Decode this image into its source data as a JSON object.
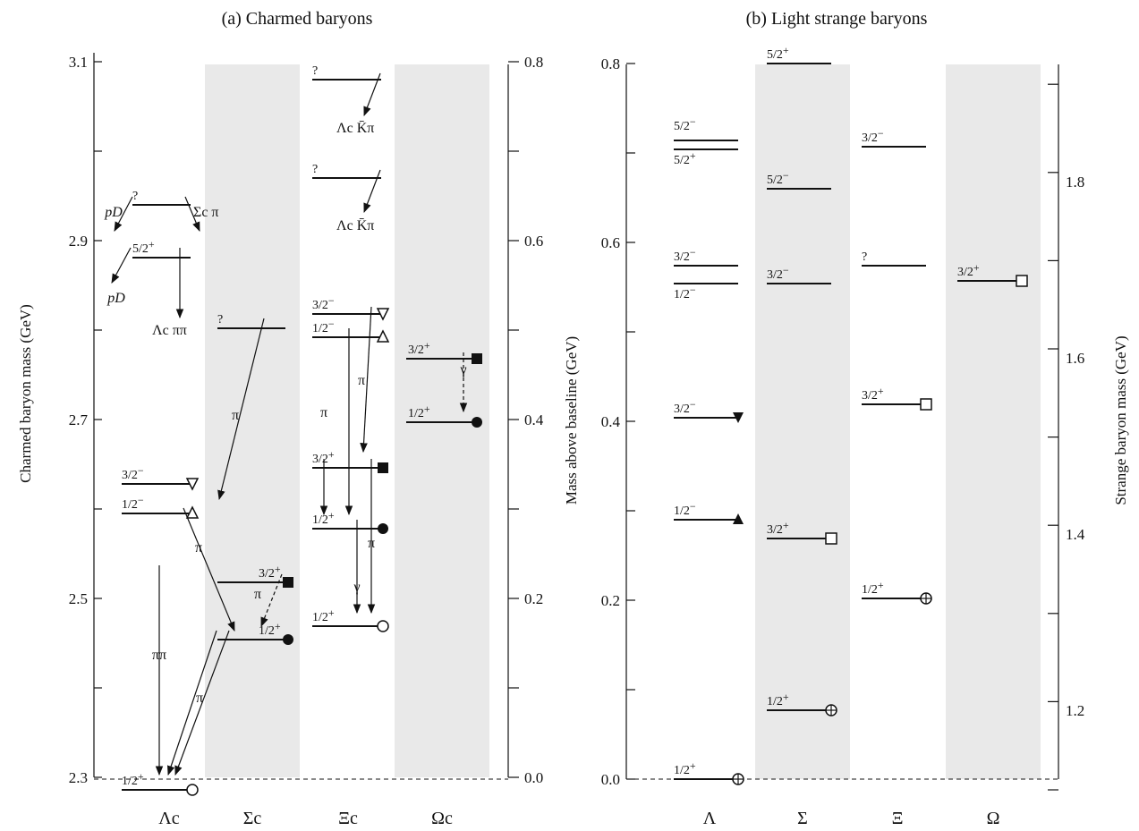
{
  "colors": {
    "shade": "#e9e9e9",
    "ink": "#111111"
  },
  "panel_a": {
    "title": "(a) Charmed baryons",
    "left_axis": {
      "label": "Charmed baryon mass  (GeV)",
      "ticks": [
        "2.3",
        "2.5",
        "2.7",
        "2.9",
        "3.1"
      ]
    },
    "right_axis": {
      "ticks": [
        "0.0",
        "0.2",
        "0.4",
        "0.6",
        "0.8"
      ]
    },
    "columns": [
      "Λc",
      "Σc",
      "Ξc",
      "Ωc"
    ],
    "levels": [
      {
        "col": 0,
        "mass": 2.286,
        "jp": "1/2+",
        "marker": "open-circle"
      },
      {
        "col": 0,
        "mass": 2.595,
        "jp": "1/2−",
        "marker": "open-triangle-up"
      },
      {
        "col": 0,
        "mass": 2.628,
        "jp": "3/2−",
        "marker": "open-triangle-down"
      },
      {
        "col": 0,
        "mass": 2.881,
        "jp": "5/2+",
        "marker": ""
      },
      {
        "col": 0,
        "mass": 2.94,
        "jp": "?",
        "marker": ""
      },
      {
        "col": 1,
        "mass": 2.454,
        "jp": "1/2+",
        "marker": "filled-circle"
      },
      {
        "col": 1,
        "mass": 2.518,
        "jp": "3/2+",
        "marker": "filled-square"
      },
      {
        "col": 1,
        "mass": 2.802,
        "jp": "?",
        "marker": ""
      },
      {
        "col": 2,
        "mass": 2.469,
        "jp": "1/2+",
        "marker": "open-circle"
      },
      {
        "col": 2,
        "mass": 2.578,
        "jp": "1/2+",
        "marker": "filled-circle"
      },
      {
        "col": 2,
        "mass": 2.646,
        "jp": "3/2+",
        "marker": "filled-square"
      },
      {
        "col": 2,
        "mass": 2.792,
        "jp": "1/2−",
        "marker": "open-triangle-up"
      },
      {
        "col": 2,
        "mass": 2.818,
        "jp": "3/2−",
        "marker": "open-triangle-down"
      },
      {
        "col": 2,
        "mass": 2.97,
        "jp": "?",
        "marker": ""
      },
      {
        "col": 2,
        "mass": 3.08,
        "jp": "?",
        "marker": ""
      },
      {
        "col": 3,
        "mass": 2.697,
        "jp": "1/2+",
        "marker": "filled-circle"
      },
      {
        "col": 3,
        "mass": 2.768,
        "jp": "3/2+",
        "marker": "filled-square"
      }
    ],
    "decay_labels": {
      "pD_upper": "pD",
      "sigma_c_pi": "Σc π",
      "pD_lower": "pD",
      "lambda_c_pipi": "Λc ππ",
      "pipi": "ππ",
      "pi": "π",
      "gamma": "γ",
      "lambda_c_kbar_pi": "Λc K̄π"
    }
  },
  "panel_b": {
    "title": "(b) Light strange baryons",
    "left_axis": {
      "label": "Mass above baseline  (GeV)",
      "ticks": [
        "0.0",
        "0.2",
        "0.4",
        "0.6",
        "0.8"
      ]
    },
    "right_axis": {
      "label": "Strange baryon mass  (GeV)",
      "ticks": [
        "1.2",
        "1.4",
        "1.6",
        "1.8"
      ]
    },
    "columns": [
      "Λ",
      "Σ",
      "Ξ",
      "Ω"
    ],
    "levels": [
      {
        "col": 0,
        "mass": 0.0,
        "jp": "1/2+",
        "marker": "open-circle-plus"
      },
      {
        "col": 0,
        "mass": 0.29,
        "jp": "1/2−",
        "marker": "filled-triangle-up"
      },
      {
        "col": 0,
        "mass": 0.404,
        "jp": "3/2−",
        "marker": "filled-triangle-down"
      },
      {
        "col": 0,
        "mass": 0.554,
        "jp": "1/2−",
        "marker": ""
      },
      {
        "col": 0,
        "mass": 0.574,
        "jp": "3/2−",
        "marker": ""
      },
      {
        "col": 0,
        "mass": 0.704,
        "jp": "5/2+",
        "marker": ""
      },
      {
        "col": 0,
        "mass": 0.714,
        "jp": "5/2−",
        "marker": ""
      },
      {
        "col": 1,
        "mass": 0.077,
        "jp": "1/2+",
        "marker": "open-circle-plus"
      },
      {
        "col": 1,
        "mass": 0.269,
        "jp": "3/2+",
        "marker": "open-square"
      },
      {
        "col": 1,
        "mass": 0.554,
        "jp": "3/2−",
        "marker": ""
      },
      {
        "col": 1,
        "mass": 0.66,
        "jp": "5/2−",
        "marker": ""
      },
      {
        "col": 1,
        "mass": 0.8,
        "jp": "5/2+",
        "marker": ""
      },
      {
        "col": 2,
        "mass": 0.202,
        "jp": "1/2+",
        "marker": "open-circle-plus"
      },
      {
        "col": 2,
        "mass": 0.419,
        "jp": "3/2+",
        "marker": "open-square"
      },
      {
        "col": 2,
        "mass": 0.574,
        "jp": "?",
        "marker": ""
      },
      {
        "col": 2,
        "mass": 0.707,
        "jp": "3/2−",
        "marker": ""
      },
      {
        "col": 3,
        "mass": 0.557,
        "jp": "3/2+",
        "marker": "open-square"
      }
    ]
  }
}
